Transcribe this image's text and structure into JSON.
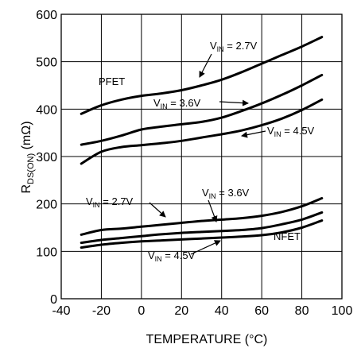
{
  "chart_data": {
    "type": "line",
    "xlabel": "TEMPERATURE (°C)",
    "ylabel": "R",
    "ylabel_sub": "DS(ON)",
    "ylabel_unit": " (mΩ)",
    "xlim": [
      -40,
      100
    ],
    "ylim": [
      0,
      600
    ],
    "x_ticks": [
      "-40",
      "-20",
      "0",
      "20",
      "40",
      "60",
      "80",
      "100"
    ],
    "y_ticks": [
      "0",
      "100",
      "200",
      "300",
      "400",
      "500",
      "600"
    ],
    "grid": true,
    "x": [
      -30,
      -20,
      -10,
      0,
      10,
      20,
      30,
      40,
      50,
      60,
      70,
      80,
      90
    ],
    "series": [
      {
        "group": "PFET",
        "vin": "2.7V",
        "values": [
          390,
          408,
          420,
          428,
          433,
          440,
          450,
          462,
          478,
          496,
          514,
          532,
          552
        ]
      },
      {
        "group": "PFET",
        "vin": "3.6V",
        "values": [
          325,
          333,
          344,
          357,
          363,
          368,
          373,
          382,
          396,
          412,
          430,
          450,
          472
        ]
      },
      {
        "group": "PFET",
        "vin": "4.5V",
        "values": [
          285,
          310,
          320,
          324,
          328,
          333,
          340,
          347,
          355,
          366,
          380,
          398,
          420
        ]
      },
      {
        "group": "NFET",
        "vin": "2.7V",
        "values": [
          135,
          145,
          148,
          152,
          156,
          160,
          164,
          167,
          170,
          175,
          183,
          195,
          212
        ]
      },
      {
        "group": "NFET",
        "vin": "3.6V",
        "values": [
          118,
          124,
          128,
          132,
          136,
          139,
          141,
          143,
          145,
          149,
          157,
          167,
          182
        ]
      },
      {
        "group": "NFET",
        "vin": "4.5V",
        "values": [
          108,
          114,
          118,
          121,
          123,
          125,
          127,
          129,
          131,
          134,
          140,
          150,
          165
        ]
      }
    ],
    "annotations": {
      "pfet": "PFET",
      "nfet": "NFET",
      "vin_prefix": "V",
      "vin_sub": "IN",
      "pfet_27": " = 2.7V",
      "pfet_36": " = 3.6V",
      "pfet_45": " = 4.5V",
      "nfet_27": " = 2.7V",
      "nfet_36": " = 3.6V",
      "nfet_45": " = 4.5V"
    }
  }
}
